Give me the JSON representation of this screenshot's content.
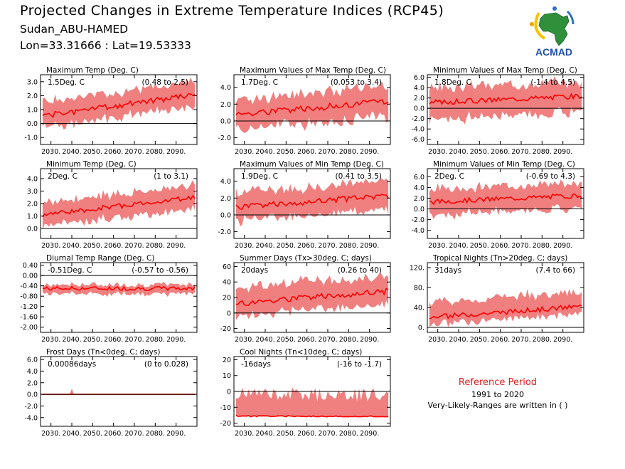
{
  "header": {
    "title": "Projected Changes in Extreme Temperature Indices (RCP45)",
    "location": "Sudan_ABU-HAMED",
    "coords": "Lon=33.31666 : Lat=19.53333"
  },
  "logo": {
    "text": "ACMAD"
  },
  "colors": {
    "band": "#f08080",
    "line": "#ff0000",
    "axis": "#000000",
    "title_ref": "#e0201e"
  },
  "reference": {
    "title": "Reference Period",
    "years": "1991 to 2020",
    "note": "Very-Likely-Ranges are written in ( )"
  },
  "chart_data": [
    {
      "type": "area",
      "title": "Maximum Temp (Deg. C)",
      "summary": "1.5Deg. C",
      "range": "(0.48 to 2.5)",
      "x_range": [
        2025,
        2100
      ],
      "x_ticks": [
        2030,
        2040,
        2050,
        2060,
        2070,
        2080,
        2090
      ],
      "x_tick_labels": [
        "2030.",
        "2040.",
        "2050.",
        "2060.",
        "2070.",
        "2080.",
        "2090."
      ],
      "ylim": [
        -1.5,
        3.5
      ],
      "y_ticks": [
        -1,
        0,
        1,
        2,
        3
      ],
      "y_tick_labels": [
        "-1.0",
        "0.0",
        "1.0",
        "2.0",
        "3.0"
      ],
      "series": [
        {
          "start": 0.55,
          "end": 2.05,
          "lo_off": -0.85,
          "hi_off": 0.95,
          "amp": 0.2,
          "seed": 1
        }
      ]
    },
    {
      "type": "area",
      "title": "Maximum Values of Max Temp (Deg. C)",
      "summary": "1.7Deg. C",
      "range": "(0.053 to 3.4)",
      "x_range": [
        2025,
        2100
      ],
      "x_ticks": [
        2030,
        2040,
        2050,
        2060,
        2070,
        2080,
        2090
      ],
      "x_tick_labels": [
        "2030.",
        "2040.",
        "2050.",
        "2060.",
        "2070.",
        "2080.",
        "2090."
      ],
      "ylim": [
        -2.8,
        5.5
      ],
      "y_ticks": [
        -2,
        0,
        2,
        4
      ],
      "y_tick_labels": [
        "-2.0",
        "0.0",
        "2.0",
        "4.0"
      ],
      "series": [
        {
          "start": 0.8,
          "end": 2.3,
          "lo_off": -1.8,
          "hi_off": 1.8,
          "amp": 0.4,
          "seed": 2
        }
      ]
    },
    {
      "type": "area",
      "title": "Minimum Values of Max Temp (Deg. C)",
      "summary": "1.8Deg. C",
      "range": "(-1.4 to 4.5)",
      "x_range": [
        2025,
        2100
      ],
      "x_ticks": [
        2030,
        2040,
        2050,
        2060,
        2070,
        2080,
        2090
      ],
      "x_tick_labels": [
        "2030.",
        "2040.",
        "2050.",
        "2060.",
        "2070.",
        "2080.",
        "2090."
      ],
      "ylim": [
        -7,
        6.5
      ],
      "y_ticks": [
        -6,
        -4,
        -2,
        0,
        2,
        4,
        6
      ],
      "y_tick_labels": [
        "-6.0",
        "-4.0",
        "-2.0",
        "0.0",
        "2.0",
        "4.0",
        "6.0"
      ],
      "series": [
        {
          "start": 1.1,
          "end": 2.4,
          "lo_off": -3.2,
          "hi_off": 2.8,
          "amp": 0.5,
          "seed": 3
        }
      ]
    },
    {
      "type": "area",
      "title": "Minimum Temp (Deg. C)",
      "summary": "2Deg. C",
      "range": "(1 to 3.1)",
      "x_range": [
        2025,
        2100
      ],
      "x_ticks": [
        2030,
        2040,
        2050,
        2060,
        2070,
        2080,
        2090
      ],
      "x_tick_labels": [
        "2030.",
        "2040.",
        "2050.",
        "2060.",
        "2070.",
        "2080.",
        "2090."
      ],
      "ylim": [
        -0.8,
        4.8
      ],
      "y_ticks": [
        0,
        1,
        2,
        3,
        4
      ],
      "y_tick_labels": [
        "0.0",
        "1.0",
        "2.0",
        "3.0",
        "4.0"
      ],
      "series": [
        {
          "start": 1.1,
          "end": 2.5,
          "lo_off": -0.9,
          "hi_off": 1.0,
          "amp": 0.2,
          "seed": 4
        }
      ]
    },
    {
      "type": "area",
      "title": "Maximum Values of Min Temp (Deg. C)",
      "summary": "1.9Deg. C",
      "range": "(0.41 to 3.5)",
      "x_range": [
        2025,
        2100
      ],
      "x_ticks": [
        2030,
        2040,
        2050,
        2060,
        2070,
        2080,
        2090
      ],
      "x_tick_labels": [
        "2030.",
        "2040.",
        "2050.",
        "2060.",
        "2070.",
        "2080.",
        "2090."
      ],
      "ylim": [
        -2.8,
        5.5
      ],
      "y_ticks": [
        -2,
        0,
        2,
        4
      ],
      "y_tick_labels": [
        "-2.0",
        "0.0",
        "2.0",
        "4.0"
      ],
      "series": [
        {
          "start": 0.9,
          "end": 2.3,
          "lo_off": -1.6,
          "hi_off": 1.7,
          "amp": 0.35,
          "seed": 5
        }
      ]
    },
    {
      "type": "area",
      "title": "Minimum Values of Min Temp (Deg. C)",
      "summary": "2Deg. C",
      "range": "(-0.69 to 4.3)",
      "x_range": [
        2025,
        2100
      ],
      "x_ticks": [
        2030,
        2040,
        2050,
        2060,
        2070,
        2080,
        2090
      ],
      "x_tick_labels": [
        "2030.",
        "2040.",
        "2050.",
        "2060.",
        "2070.",
        "2080.",
        "2090."
      ],
      "ylim": [
        -5.5,
        7.5
      ],
      "y_ticks": [
        -4,
        -2,
        0,
        2,
        4,
        6
      ],
      "y_tick_labels": [
        "-4.0",
        "-2.0",
        "0.0",
        "2.0",
        "4.0",
        "6.0"
      ],
      "series": [
        {
          "start": 1.3,
          "end": 2.5,
          "lo_off": -2.4,
          "hi_off": 2.4,
          "amp": 0.45,
          "seed": 6
        }
      ]
    },
    {
      "type": "area",
      "title": "Diurnal Temp Range (Deg. C)",
      "summary": "-0.51Deg. C",
      "range": "(-0.57 to -0.56)",
      "x_range": [
        2025,
        2100
      ],
      "x_ticks": [
        2030,
        2040,
        2050,
        2060,
        2070,
        2080,
        2090
      ],
      "x_tick_labels": [
        "2030.",
        "2040.",
        "2050.",
        "2060.",
        "2070.",
        "2080.",
        "2090."
      ],
      "ylim": [
        -2.2,
        0.5
      ],
      "y_ticks": [
        -2,
        -1.6,
        -1.2,
        -0.8,
        -0.4,
        0,
        0.4
      ],
      "y_tick_labels": [
        "-2.00",
        "-1.60",
        "-1.20",
        "-0.80",
        "-0.40",
        "0.00",
        "0.40"
      ],
      "series": [
        {
          "start": -0.5,
          "end": -0.5,
          "lo_off": -0.2,
          "hi_off": 0.15,
          "amp": 0.08,
          "seed": 7
        }
      ]
    },
    {
      "type": "area",
      "title": "Summer Days (Tx>30deg. C; days)",
      "summary": "20days",
      "range": "(0.26 to 40)",
      "x_range": [
        2025,
        2100
      ],
      "x_ticks": [
        2030,
        2040,
        2050,
        2060,
        2070,
        2080,
        2090
      ],
      "x_tick_labels": [
        "2030.",
        "2040.",
        "2050.",
        "2060.",
        "2070.",
        "2080.",
        "2090."
      ],
      "ylim": [
        -25,
        65
      ],
      "y_ticks": [
        -20,
        0,
        20,
        40,
        60
      ],
      "y_tick_labels": [
        "-20",
        "0",
        "20",
        "40",
        "60"
      ],
      "series": [
        {
          "start": 12,
          "end": 28,
          "lo_off": -16,
          "hi_off": 20,
          "amp": 4,
          "seed": 8
        }
      ]
    },
    {
      "type": "area",
      "title": "Tropical Nights (Tn>20deg. C; days)",
      "summary": "31days",
      "range": "(7.4 to 66)",
      "x_range": [
        2025,
        2100
      ],
      "x_ticks": [
        2030,
        2040,
        2050,
        2060,
        2070,
        2080,
        2090
      ],
      "x_tick_labels": [
        "2030.",
        "2040.",
        "2050.",
        "2060.",
        "2070.",
        "2080.",
        "2090."
      ],
      "ylim": [
        -10,
        130
      ],
      "y_ticks": [
        0,
        40,
        80,
        120
      ],
      "y_tick_labels": [
        "0.",
        "40.",
        "80.",
        "120."
      ],
      "series": [
        {
          "start": 20,
          "end": 42,
          "lo_off": -14,
          "hi_off": 30,
          "amp": 5,
          "seed": 9
        }
      ]
    },
    {
      "type": "area",
      "title": "Frost Days (Tn<0deg. C; days)",
      "summary": "0.00086days",
      "range": "(0 to 0.028)",
      "x_range": [
        2025,
        2100
      ],
      "x_ticks": [
        2030,
        2040,
        2050,
        2060,
        2070,
        2080,
        2090
      ],
      "x_tick_labels": [
        "2030.",
        "2040.",
        "2050.",
        "2060.",
        "2070.",
        "2080.",
        "2090."
      ],
      "ylim": [
        -5.5,
        6.5
      ],
      "y_ticks": [
        -4,
        -2,
        0,
        2,
        4,
        6
      ],
      "y_tick_labels": [
        "-4.0",
        "-2.0",
        "0.0",
        "2.0",
        "4.0",
        "6.0"
      ],
      "series": [
        {
          "start": 0,
          "end": 0,
          "lo_off": 0,
          "hi_off": 0.05,
          "amp": 0,
          "seed": 10,
          "spike_x": 2040,
          "spike": 1.0
        }
      ]
    },
    {
      "type": "area",
      "title": "Cool Nights (Tn<10deg. C; days)",
      "summary": "-16days",
      "range": "(-16 to -1.7)",
      "x_range": [
        2025,
        2100
      ],
      "x_ticks": [
        2030,
        2040,
        2050,
        2060,
        2070,
        2080,
        2090
      ],
      "x_tick_labels": [
        "2030.",
        "2040.",
        "2050.",
        "2060.",
        "2070.",
        "2080.",
        "2090."
      ],
      "ylim": [
        -22,
        22
      ],
      "y_ticks": [
        -20,
        -10,
        0,
        10,
        20
      ],
      "y_tick_labels": [
        "-20",
        "-10",
        "0",
        "10",
        "20"
      ],
      "series": [
        {
          "start": -15.5,
          "end": -16,
          "lo_off": -0.5,
          "hi_off": 14,
          "amp": 0.5,
          "seed": 11,
          "floor": -16
        }
      ]
    }
  ]
}
